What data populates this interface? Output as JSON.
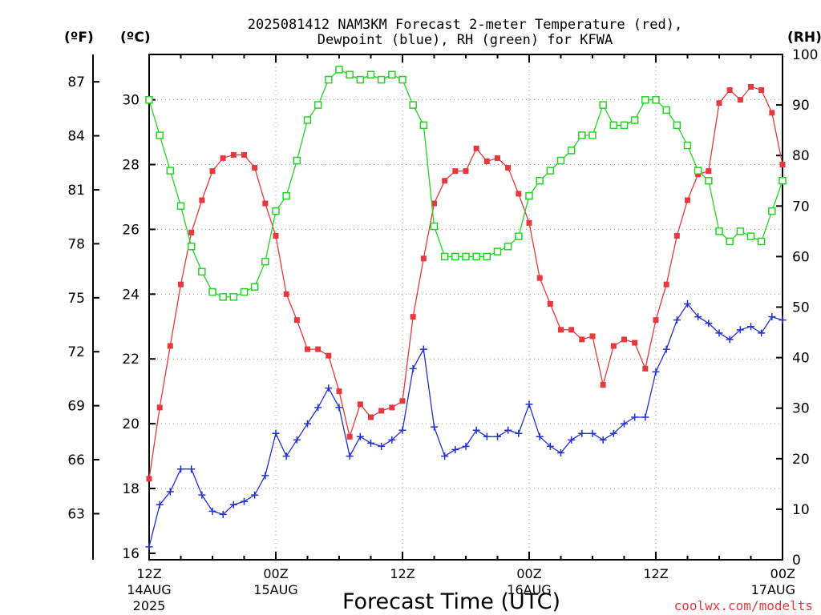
{
  "chart_data": {
    "type": "line",
    "title_line1": "2025081412 NAM3KM Forecast 2-meter Temperature (red),",
    "title_line2": "Dewpoint (blue), RH (green) for KFWA",
    "xlabel": "Forecast Time (UTC)",
    "credit": "coolwx.com/modelts",
    "unit_f": "(ºF)",
    "unit_c": "(ºC)",
    "unit_rh": "(RH)",
    "x_ticks": [
      {
        "label": "12Z",
        "date": "14AUG",
        "year": "2025"
      },
      {
        "label": "00Z",
        "date": "15AUG",
        "year": ""
      },
      {
        "label": "12Z",
        "date": "",
        "year": ""
      },
      {
        "label": "00Z",
        "date": "16AUG",
        "year": ""
      },
      {
        "label": "12Z",
        "date": "",
        "year": ""
      },
      {
        "label": "00Z",
        "date": "17AUG",
        "year": ""
      }
    ],
    "xlim_hours": [
      0,
      60
    ],
    "y_left_c": {
      "ticks": [
        16,
        18,
        20,
        22,
        24,
        26,
        28,
        30
      ],
      "lim": [
        15.8,
        31.4
      ]
    },
    "y_left_f": {
      "ticks": [
        63,
        66,
        69,
        72,
        75,
        78,
        81,
        84,
        87
      ]
    },
    "y_right_rh": {
      "ticks": [
        0,
        10,
        20,
        30,
        40,
        50,
        60,
        70,
        80,
        90,
        100
      ],
      "lim": [
        0,
        100
      ]
    },
    "grid": true,
    "series": [
      {
        "name": "Temperature",
        "axis": "c",
        "color": "#e8383d",
        "marker": "filled-square",
        "values": [
          18.3,
          20.5,
          22.4,
          24.3,
          25.9,
          26.9,
          27.8,
          28.2,
          28.3,
          28.3,
          27.9,
          26.8,
          25.8,
          24.0,
          23.2,
          22.3,
          22.3,
          22.1,
          21.0,
          19.6,
          20.6,
          20.2,
          20.4,
          20.5,
          20.7,
          23.3,
          25.1,
          26.8,
          27.5,
          27.8,
          27.8,
          28.5,
          28.1,
          28.2,
          27.9,
          27.1,
          26.2,
          24.5,
          23.7,
          22.9,
          22.9,
          22.6,
          22.7,
          21.2,
          22.4,
          22.6,
          22.5,
          21.7,
          23.2,
          24.3,
          25.8,
          26.9,
          27.7,
          27.8,
          29.9,
          30.3,
          30.0,
          30.4,
          30.3,
          29.6,
          28.0
        ]
      },
      {
        "name": "Dewpoint",
        "axis": "c",
        "color": "#2230d8",
        "marker": "plus",
        "values": [
          16.2,
          17.5,
          17.9,
          18.6,
          18.6,
          17.8,
          17.3,
          17.2,
          17.5,
          17.6,
          17.8,
          18.4,
          19.7,
          19.0,
          19.5,
          20.0,
          20.5,
          21.1,
          20.5,
          19.0,
          19.6,
          19.4,
          19.3,
          19.5,
          19.8,
          21.7,
          22.3,
          19.9,
          19.0,
          19.2,
          19.3,
          19.8,
          19.6,
          19.6,
          19.8,
          19.7,
          20.6,
          19.6,
          19.3,
          19.1,
          19.5,
          19.7,
          19.7,
          19.5,
          19.7,
          20.0,
          20.2,
          20.2,
          21.6,
          22.3,
          23.2,
          23.7,
          23.3,
          23.1,
          22.8,
          22.6,
          22.9,
          23.0,
          22.8,
          23.3,
          23.2
        ]
      },
      {
        "name": "RH",
        "axis": "rh",
        "color": "#24d424",
        "marker": "open-square",
        "values": [
          91,
          84,
          77,
          70,
          62,
          57,
          53,
          52,
          52,
          53,
          54,
          59,
          69,
          72,
          79,
          87,
          90,
          95,
          97,
          96,
          95,
          96,
          95,
          96,
          95,
          90,
          86,
          66,
          60,
          60,
          60,
          60,
          60,
          61,
          62,
          64,
          72,
          75,
          77,
          79,
          81,
          84,
          84,
          90,
          86,
          86,
          87,
          91,
          91,
          89,
          86,
          82,
          77,
          75,
          65,
          63,
          65,
          64,
          63,
          69,
          75
        ]
      }
    ]
  }
}
